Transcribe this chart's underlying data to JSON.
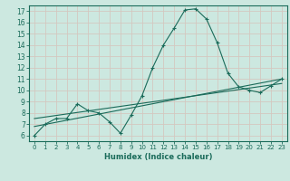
{
  "xlabel": "Humidex (Indice chaleur)",
  "ylabel": "",
  "bg_color": "#cce8e0",
  "grid_color": "#b0d8cc",
  "line_color": "#1a6b5a",
  "xlim": [
    -0.5,
    23.5
  ],
  "ylim": [
    5.5,
    17.5
  ],
  "xticks": [
    0,
    1,
    2,
    3,
    4,
    5,
    6,
    7,
    8,
    9,
    10,
    11,
    12,
    13,
    14,
    15,
    16,
    17,
    18,
    19,
    20,
    21,
    22,
    23
  ],
  "yticks": [
    6,
    7,
    8,
    9,
    10,
    11,
    12,
    13,
    14,
    15,
    16,
    17
  ],
  "series1_x": [
    0,
    1,
    2,
    3,
    4,
    5,
    6,
    7,
    8,
    9,
    10,
    11,
    12,
    13,
    14,
    15,
    16,
    17,
    18,
    19,
    20,
    21,
    22,
    23
  ],
  "series1_y": [
    6.0,
    7.0,
    7.5,
    7.5,
    8.8,
    8.2,
    8.0,
    7.2,
    6.2,
    7.8,
    9.5,
    12.0,
    14.0,
    15.5,
    17.1,
    17.2,
    16.3,
    14.2,
    11.5,
    10.3,
    10.0,
    9.8,
    10.4,
    11.0
  ],
  "series2_x": [
    0,
    23
  ],
  "series2_y": [
    6.8,
    11.0
  ],
  "series3_x": [
    0,
    23
  ],
  "series3_y": [
    7.5,
    10.6
  ]
}
